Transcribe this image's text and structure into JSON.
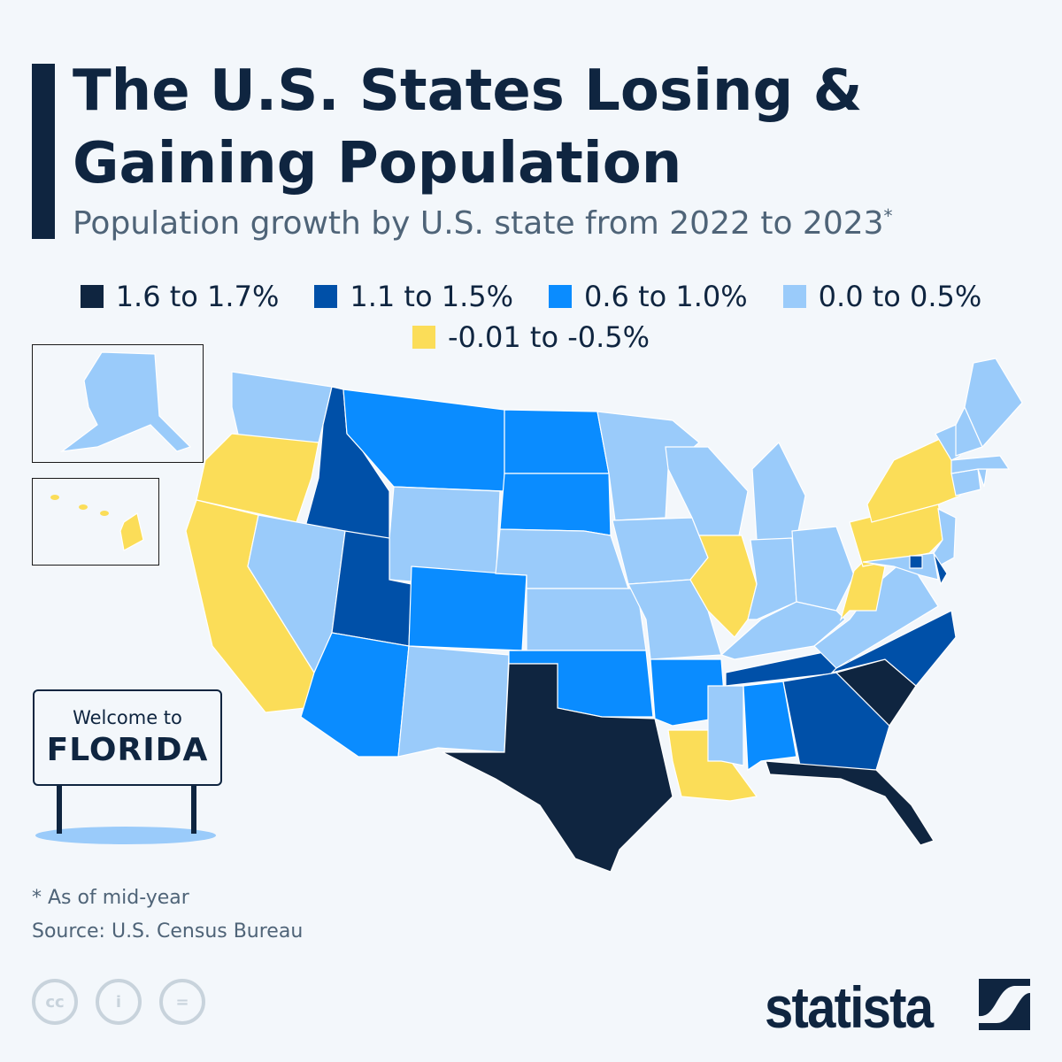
{
  "header": {
    "title_line1": "The U.S. States Losing &",
    "title_line2": "Gaining Population",
    "subtitle": "Population growth by U.S. state from 2022 to 2023",
    "subtitle_mark": "*"
  },
  "legend": [
    {
      "key": "c1",
      "label": "1.6 to 1.7%",
      "color": "#0f2540"
    },
    {
      "key": "c2",
      "label": "1.1 to 1.5%",
      "color": "#0050a8"
    },
    {
      "key": "c3",
      "label": "0.6 to 1.0%",
      "color": "#0a8cff"
    },
    {
      "key": "c4",
      "label": "0.0 to 0.5%",
      "color": "#9acbfa"
    },
    {
      "key": "c5",
      "label": "-0.01 to -0.5%",
      "color": "#fbdd58"
    }
  ],
  "states": {
    "TX": "c1",
    "SC": "c1",
    "FL": "c1",
    "ID": "c2",
    "UT": "c2",
    "TN": "c2",
    "NC": "c2",
    "GA": "c2",
    "DE": "c2",
    "DC": "c2",
    "MT": "c3",
    "ND": "c3",
    "SD": "c3",
    "CO": "c3",
    "AZ": "c3",
    "OK": "c3",
    "AR": "c3",
    "AL": "c3",
    "WA": "c4",
    "NV": "c4",
    "WY": "c4",
    "NE": "c4",
    "KS": "c4",
    "NM": "c4",
    "MN": "c4",
    "IA": "c4",
    "MO": "c4",
    "WI": "c4",
    "MI": "c4",
    "IN": "c4",
    "OH": "c4",
    "KY": "c4",
    "MS": "c4",
    "VA": "c4",
    "MD": "c4",
    "NJ": "c4",
    "CT": "c4",
    "RI": "c4",
    "MA": "c4",
    "VT": "c4",
    "NH": "c4",
    "ME": "c4",
    "AK": "c4",
    "OR": "c5",
    "CA": "c5",
    "IL": "c5",
    "LA": "c5",
    "WV": "c5",
    "PA": "c5",
    "NY": "c5",
    "HI": "c5"
  },
  "sign": {
    "line1": "Welcome to",
    "line2": "FLORIDA"
  },
  "footer": {
    "note": "* As of mid-year",
    "source": "Source: U.S. Census Bureau",
    "license_icons": [
      "cc-icon",
      "attribution-icon",
      "no-derivatives-icon"
    ],
    "brand": "statista"
  }
}
